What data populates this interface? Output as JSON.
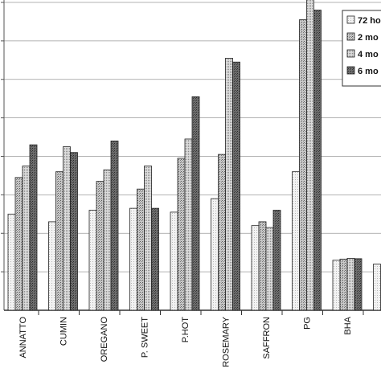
{
  "chart_data": {
    "type": "bar",
    "title": "",
    "xlabel": "",
    "ylabel": "",
    "categories": [
      "ANNATTO",
      "CUMIN",
      "OREGANO",
      "P. SWEET",
      "P.HOT",
      "ROSEMARY",
      "SAFFRON",
      "PG",
      "BHA",
      ""
    ],
    "ylim": [
      0,
      8
    ],
    "grid": true,
    "legend_position": "top-right",
    "series": [
      {
        "name": "72 ho",
        "pattern": "light",
        "values": [
          2.5,
          2.3,
          2.6,
          2.65,
          2.55,
          2.9,
          2.2,
          3.6,
          1.3,
          1.2
        ]
      },
      {
        "name": "2 mo",
        "pattern": "dots",
        "values": [
          3.45,
          3.6,
          3.35,
          3.15,
          3.95,
          4.05,
          2.3,
          7.55,
          1.33,
          null
        ]
      },
      {
        "name": "4 mo",
        "pattern": "medium",
        "values": [
          3.75,
          4.25,
          3.65,
          3.75,
          4.45,
          6.55,
          2.15,
          8.35,
          1.35,
          null
        ]
      },
      {
        "name": "6 mo",
        "pattern": "dark",
        "values": [
          4.3,
          4.1,
          4.4,
          2.65,
          5.55,
          6.45,
          2.6,
          7.8,
          1.34,
          null
        ]
      }
    ]
  }
}
